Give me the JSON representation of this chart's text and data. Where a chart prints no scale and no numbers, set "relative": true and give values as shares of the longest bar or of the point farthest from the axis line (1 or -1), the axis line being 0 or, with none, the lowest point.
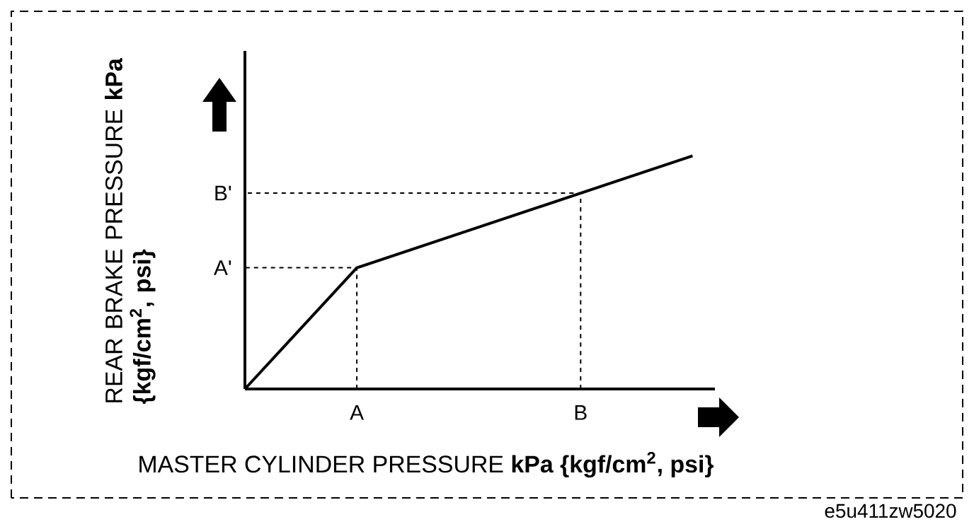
{
  "chart_data": {
    "type": "line",
    "relative": true,
    "categories": [
      null,
      "A",
      null,
      "B",
      null
    ],
    "values": [
      0,
      0.52,
      0.68,
      0.84,
      1.0
    ],
    "color": "#000000",
    "xlabel": "MASTER CYLINDER PRESSURE  **kPa {kgf/cm$^{2}$, psi}**",
    "ylabel": "REAR BRAKE PRESSURE **kPa {kgf/cm$^{2}$, psi}**",
    "annotations": [
      "A'",
      "B'",
      "e5u411zw5020"
    ]
  }
}
